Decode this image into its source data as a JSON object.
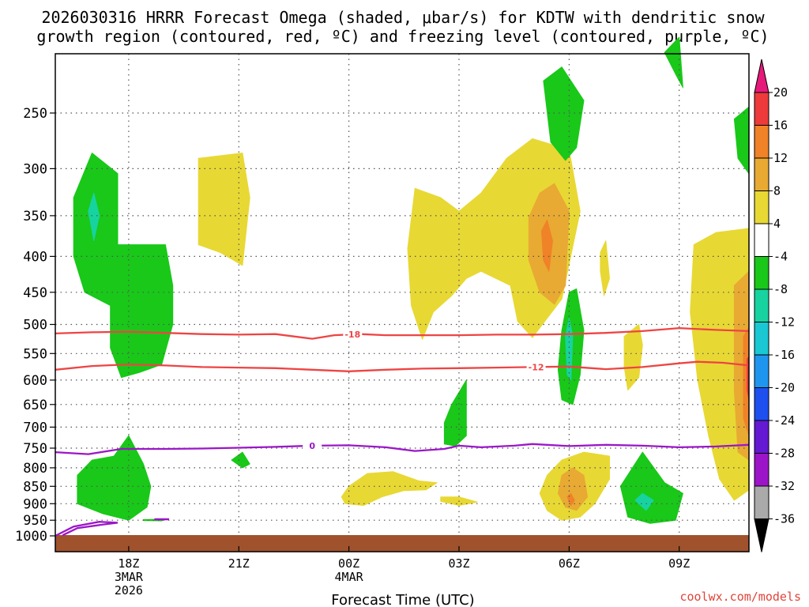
{
  "title_line1": "2026030316 HRRR Forecast Omega (shaded, μbar/s) for KDTW with dendritic snow",
  "title_line2": "growth region (contoured, red, ºC) and freezing level (contoured, purple, ºC)",
  "credit": "coolwx.com/models",
  "chart_data": {
    "type": "contour",
    "xlabel": "Forecast Time (UTC)",
    "ylabel": "",
    "y_scale": "log",
    "y_direction": "reversed",
    "xlim": [
      16,
      34.9
    ],
    "ylim": [
      1000,
      200
    ],
    "grid": true,
    "x_ticks": [
      {
        "x": 18,
        "label": "18Z",
        "sub1": "3MAR",
        "sub2": "2026"
      },
      {
        "x": 21,
        "label": "21Z",
        "sub1": "",
        "sub2": ""
      },
      {
        "x": 24,
        "label": "00Z",
        "sub1": "4MAR",
        "sub2": ""
      },
      {
        "x": 27,
        "label": "03Z",
        "sub1": "",
        "sub2": ""
      },
      {
        "x": 30,
        "label": "06Z",
        "sub1": "",
        "sub2": ""
      },
      {
        "x": 33,
        "label": "09Z",
        "sub1": "",
        "sub2": ""
      }
    ],
    "y_ticks": [
      250,
      300,
      350,
      400,
      450,
      500,
      550,
      600,
      650,
      700,
      750,
      800,
      850,
      900,
      950,
      1000
    ],
    "colorbar": {
      "labels": [
        "20",
        "16",
        "12",
        "8",
        "4",
        "-4",
        "-8",
        "-12",
        "-16",
        "-20",
        "-24",
        "-28",
        "-32",
        "-36"
      ],
      "colors": [
        "#ee3a3a",
        "#f08228",
        "#e8aa32",
        "#e8d834",
        "#ffffff",
        "#19c819",
        "#17d3a0",
        "#19c8d2",
        "#1e96f0",
        "#1e50f0",
        "#6419d2",
        "#9c14c8",
        "#aaaaaa"
      ],
      "top_color": "#e6197a",
      "bottom_color": "#000000"
    },
    "shading_colors": {
      "up_4_8": "#e8d834",
      "up_8_12": "#e8aa32",
      "up_12_16": "#f08228",
      "up_16_20": "#ee3a3a",
      "down_4_8": "#19c819",
      "down_8_12": "#17d3a0",
      "ground": "#a0522d"
    },
    "contours": [
      {
        "name": "-18",
        "color": "#ee4444",
        "label_x": 24.1,
        "points": [
          [
            16,
            515
          ],
          [
            17,
            513
          ],
          [
            18,
            512
          ],
          [
            19,
            514
          ],
          [
            20,
            516
          ],
          [
            21,
            517
          ],
          [
            22,
            516
          ],
          [
            23,
            524
          ],
          [
            23.6,
            518
          ],
          [
            24.3,
            516
          ],
          [
            25,
            518
          ],
          [
            26,
            518
          ],
          [
            27,
            518
          ],
          [
            28,
            517
          ],
          [
            29,
            517
          ],
          [
            30,
            516
          ],
          [
            31,
            514
          ],
          [
            32,
            511
          ],
          [
            33,
            506
          ],
          [
            34,
            509
          ],
          [
            34.9,
            511
          ]
        ]
      },
      {
        "name": "-12",
        "color": "#ee4444",
        "label_x": 29.1,
        "points": [
          [
            16,
            580
          ],
          [
            17,
            573
          ],
          [
            18,
            570
          ],
          [
            19,
            572
          ],
          [
            20,
            575
          ],
          [
            21,
            576
          ],
          [
            22,
            577
          ],
          [
            23,
            580
          ],
          [
            24,
            583
          ],
          [
            25,
            580
          ],
          [
            26,
            578
          ],
          [
            27,
            577
          ],
          [
            28,
            576
          ],
          [
            29,
            575
          ],
          [
            30,
            574
          ],
          [
            31,
            579
          ],
          [
            32,
            575
          ],
          [
            33,
            568
          ],
          [
            33.5,
            565
          ],
          [
            34.2,
            567
          ],
          [
            34.9,
            572
          ]
        ]
      },
      {
        "name": "0",
        "color": "#9b17c8",
        "label_x": 23.0,
        "points": [
          [
            16,
            760
          ],
          [
            16.9,
            765
          ],
          [
            17.8,
            752
          ],
          [
            19,
            752
          ],
          [
            20,
            751
          ],
          [
            21,
            749
          ],
          [
            22,
            747
          ],
          [
            23,
            744
          ],
          [
            24,
            743
          ],
          [
            25,
            748
          ],
          [
            25.8,
            757
          ],
          [
            26.6,
            752
          ],
          [
            27,
            744
          ],
          [
            27.6,
            748
          ],
          [
            28.5,
            744
          ],
          [
            29,
            740
          ],
          [
            30,
            745
          ],
          [
            31,
            742
          ],
          [
            32,
            744
          ],
          [
            33,
            748
          ],
          [
            34,
            746
          ],
          [
            34.9,
            742
          ]
        ]
      }
    ]
  }
}
